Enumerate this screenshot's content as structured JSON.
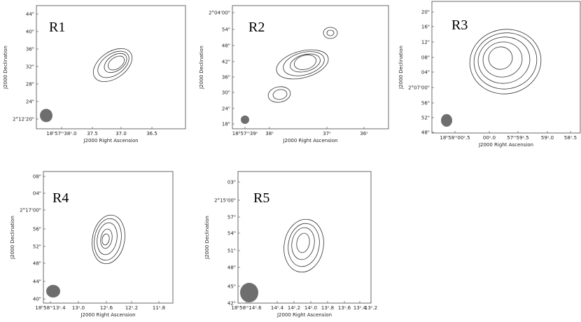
{
  "panels": [
    {
      "label": "R1",
      "x_title": "J2000 Right Ascension",
      "y_title": "J2000 Declination",
      "yticks": [
        "44\"",
        "40\"",
        "36\"",
        "32\"",
        "28\"",
        "24\"",
        "2°12'20\""
      ],
      "xticks": [
        "18ʰ57ᵐ38ˢ.0",
        "37.5",
        "37.0",
        "36.5"
      ]
    },
    {
      "label": "R2",
      "x_title": "J2000 Right Ascension",
      "y_title": "J2000 Declination",
      "yticks": [
        "2°04'00\"",
        "54\"",
        "48\"",
        "42\"",
        "36\"",
        "30\"",
        "24\"",
        "18\""
      ],
      "xticks": [
        "18ʰ57ᵐ39ˢ",
        "38ˢ",
        "37ˢ",
        "36ˢ"
      ]
    },
    {
      "label": "R3",
      "x_title": "J2000 Right Ascension",
      "y_title": "J2000 Declination",
      "yticks": [
        "20\"",
        "16\"",
        "12\"",
        "08\"",
        "04\"",
        "2°07'00\"",
        "56\"",
        "52\"",
        "48\""
      ],
      "xticks": [
        "18ʰ58ᵐ00ˢ.5",
        "00ˢ.0",
        "57ᵐ59ˢ.5",
        "59ˢ.0",
        "58ˢ.5"
      ]
    },
    {
      "label": "R4",
      "x_title": "J2000 Right Ascension",
      "y_title": "J2000 Declination",
      "yticks": [
        "08\"",
        "04\"",
        "2°17'00\"",
        "56\"",
        "52\"",
        "48\"",
        "44\"",
        "40\""
      ],
      "xticks": [
        "18ʰ58ᵐ13ˢ.4",
        "13ˢ.0",
        "12ˢ.6",
        "12ˢ.2",
        "11ˢ.8"
      ]
    },
    {
      "label": "R5",
      "x_title": "J2000 Right Ascension",
      "y_title": "J2000 Declination",
      "yticks": [
        "03\"",
        "2°15'00\"",
        "57\"",
        "54\"",
        "51\"",
        "48\"",
        "45\"",
        "42\""
      ],
      "xticks": [
        "18ʰ58ᵐ14ˢ.6",
        "14ˢ.4",
        "14ˢ.2",
        "14ˢ.0",
        "13ˢ.8",
        "13ˢ.6",
        "13ˢ.4",
        "13ˢ.2"
      ]
    }
  ]
}
